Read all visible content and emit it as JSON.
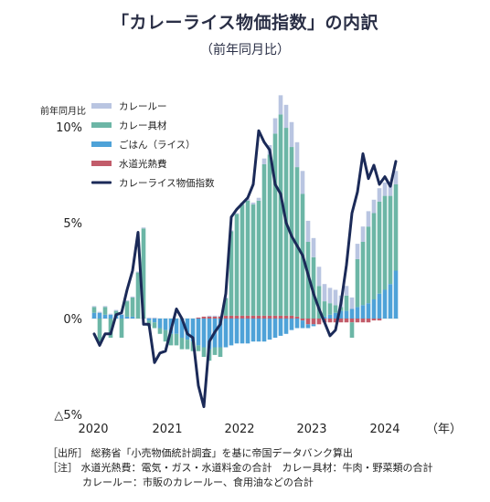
{
  "title": "「カレーライス物価指数」の内訳",
  "subtitle": "（前年同月比）",
  "notes": {
    "source": "［出所］ 総務省「小売物価統計調査」を基に帝国データバンク算出",
    "note1": "［注］ 水道光熱費：電気・ガス・水道料金の合計　カレー具材：牛肉・野菜類の合計",
    "note2": "カレールー：市販のカレールー、食用油などの合計"
  },
  "chart_data": {
    "type": "bar",
    "ylabel": "前年同月比",
    "ylim": [
      -5,
      11
    ],
    "yticks": [
      10,
      5,
      0,
      -5
    ],
    "ytick_labels": [
      "10%",
      "5%",
      "0%",
      "△5%"
    ],
    "xtick_labels": [
      "2020",
      "2021",
      "2022",
      "2023",
      "2024",
      "（年）"
    ],
    "x_start": "2020-01",
    "x_end": "2024-08",
    "legend_position": "top-left",
    "colors": {
      "カレールー": "#b9c5e1",
      "カレー具材": "#6cb6a6",
      "ごはん（ライス）": "#4ea2d8",
      "水道光熱費": "#c25c6a",
      "カレーライス物価指数": "#1b2a58"
    },
    "categories": [
      "2020-01",
      "2020-02",
      "2020-03",
      "2020-04",
      "2020-05",
      "2020-06",
      "2020-07",
      "2020-08",
      "2020-09",
      "2020-10",
      "2020-11",
      "2020-12",
      "2021-01",
      "2021-02",
      "2021-03",
      "2021-04",
      "2021-05",
      "2021-06",
      "2021-07",
      "2021-08",
      "2021-09",
      "2021-10",
      "2021-11",
      "2021-12",
      "2022-01",
      "2022-02",
      "2022-03",
      "2022-04",
      "2022-05",
      "2022-06",
      "2022-07",
      "2022-08",
      "2022-09",
      "2022-10",
      "2022-11",
      "2022-12",
      "2023-01",
      "2023-02",
      "2023-03",
      "2023-04",
      "2023-05",
      "2023-06",
      "2023-07",
      "2023-08",
      "2023-09",
      "2023-10",
      "2023-11",
      "2023-12",
      "2024-01",
      "2024-02",
      "2024-03",
      "2024-04",
      "2024-05",
      "2024-06",
      "2024-07",
      "2024-08"
    ],
    "series": [
      {
        "name": "カレールー",
        "kind": "bar",
        "values": [
          0.05,
          0.05,
          0.05,
          0.05,
          0.05,
          0.05,
          0.05,
          0.05,
          0.05,
          0.05,
          0.05,
          0.05,
          0,
          0,
          0,
          0,
          0,
          0,
          0,
          0,
          0,
          0.05,
          0.05,
          0.05,
          0.05,
          0.05,
          0.05,
          0.1,
          0.1,
          0.1,
          0.15,
          0.3,
          0.5,
          0.8,
          1.0,
          1.2,
          1.3,
          1.3,
          1.2,
          1.1,
          1.0,
          1.0,
          0.9,
          0.8,
          0.8,
          0.6,
          0.5,
          0.6,
          0.8,
          0.8,
          0.8,
          0.7,
          0.7,
          0.7,
          0.7,
          0.7
        ]
      },
      {
        "name": "カレー具材",
        "kind": "bar",
        "values": [
          0.3,
          -1.3,
          0.4,
          -1.0,
          0.2,
          -1.0,
          0.8,
          1.0,
          2.4,
          4.7,
          -0.3,
          -0.3,
          -0.3,
          -0.6,
          -0.6,
          -0.6,
          -0.6,
          -0.5,
          -0.5,
          -0.3,
          -0.5,
          -0.6,
          -0.4,
          -0.5,
          0.9,
          4.4,
          5.3,
          5.8,
          6.0,
          5.8,
          6.0,
          7.9,
          8.4,
          9.5,
          10.5,
          9.8,
          8.8,
          7.8,
          6.5,
          4.0,
          3.2,
          1.7,
          0.8,
          0.6,
          0.4,
          0.2,
          0.8,
          -0.8,
          2.5,
          3.3,
          4.0,
          4.5,
          4.8,
          4.9,
          4.6,
          4.5
        ]
      },
      {
        "name": "ごはん（ライス）",
        "kind": "bar",
        "values": [
          0.3,
          0.3,
          0.2,
          0.2,
          0.2,
          0.2,
          0.1,
          0.1,
          0.0,
          0.0,
          -0.1,
          -0.2,
          -0.5,
          -0.6,
          -0.8,
          -0.8,
          -1.0,
          -1.1,
          -1.2,
          -1.4,
          -1.5,
          -1.6,
          -1.5,
          -1.5,
          -1.5,
          -1.4,
          -1.3,
          -1.3,
          -1.3,
          -1.2,
          -1.2,
          -1.2,
          -1.1,
          -1.0,
          -0.9,
          -0.8,
          -0.6,
          -0.5,
          -0.4,
          -0.2,
          -0.1,
          0,
          0.1,
          0.2,
          0.3,
          0.4,
          0.4,
          0.5,
          0.6,
          0.7,
          0.8,
          1.0,
          1.3,
          1.5,
          1.8,
          2.5
        ]
      },
      {
        "name": "水道光熱費",
        "kind": "bar",
        "values": [
          0,
          0,
          0,
          0,
          0,
          0,
          0,
          0,
          0,
          0,
          0,
          0,
          0,
          0,
          0,
          0,
          0,
          0,
          0,
          0.05,
          0.1,
          0.1,
          0.1,
          0.1,
          0.15,
          0.15,
          0.15,
          0.15,
          0.15,
          0.15,
          0.15,
          0.15,
          0.15,
          0.15,
          0.15,
          0.15,
          0.15,
          0.1,
          -0.1,
          -0.3,
          -0.3,
          -0.3,
          -0.2,
          -0.2,
          -0.2,
          -0.2,
          -0.2,
          -0.2,
          -0.2,
          -0.2,
          -0.2,
          -0.1,
          -0.1,
          0,
          0,
          0
        ]
      },
      {
        "name": "カレーライス物価指数",
        "kind": "line",
        "values": [
          -0.8,
          -1.4,
          -0.8,
          -0.8,
          0.2,
          0.3,
          1.5,
          2.5,
          4.5,
          -0.3,
          -0.3,
          -2.3,
          -1.8,
          -1.7,
          -0.6,
          0.5,
          0,
          -0.8,
          -1.0,
          -3.5,
          -4.6,
          -1.2,
          -0.7,
          -0.3,
          1.3,
          5.3,
          5.7,
          6.0,
          6.3,
          7.0,
          9.8,
          9.2,
          8.8,
          7.0,
          6.5,
          5.0,
          4.3,
          3.8,
          3.3,
          2.3,
          1.3,
          0.5,
          -0.2,
          -0.9,
          -0.6,
          0.8,
          2.8,
          5.5,
          6.6,
          8.6,
          7.3,
          8.0,
          7.0,
          7.4,
          6.9,
          8.2
        ]
      }
    ]
  }
}
